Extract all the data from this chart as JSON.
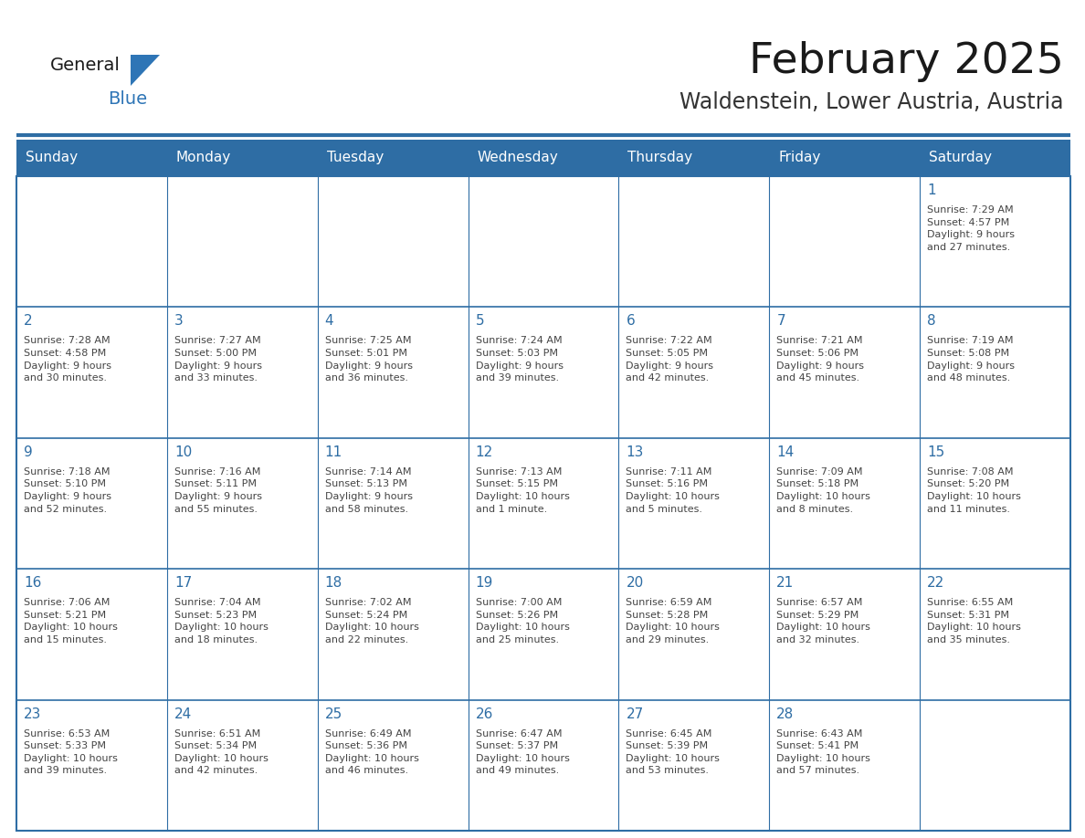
{
  "title": "February 2025",
  "subtitle": "Waldenstein, Lower Austria, Austria",
  "header_bg": "#2E6DA4",
  "header_text": "#FFFFFF",
  "cell_bg": "#FFFFFF",
  "border_color": "#2E6DA4",
  "row_border_color": "#4472A8",
  "day_headers": [
    "Sunday",
    "Monday",
    "Tuesday",
    "Wednesday",
    "Thursday",
    "Friday",
    "Saturday"
  ],
  "title_color": "#1a1a1a",
  "subtitle_color": "#333333",
  "text_color": "#444444",
  "day_number_color": "#2E6DA4",
  "weeks": [
    [
      {
        "day": null,
        "info": null
      },
      {
        "day": null,
        "info": null
      },
      {
        "day": null,
        "info": null
      },
      {
        "day": null,
        "info": null
      },
      {
        "day": null,
        "info": null
      },
      {
        "day": null,
        "info": null
      },
      {
        "day": 1,
        "info": "Sunrise: 7:29 AM\nSunset: 4:57 PM\nDaylight: 9 hours\nand 27 minutes."
      }
    ],
    [
      {
        "day": 2,
        "info": "Sunrise: 7:28 AM\nSunset: 4:58 PM\nDaylight: 9 hours\nand 30 minutes."
      },
      {
        "day": 3,
        "info": "Sunrise: 7:27 AM\nSunset: 5:00 PM\nDaylight: 9 hours\nand 33 minutes."
      },
      {
        "day": 4,
        "info": "Sunrise: 7:25 AM\nSunset: 5:01 PM\nDaylight: 9 hours\nand 36 minutes."
      },
      {
        "day": 5,
        "info": "Sunrise: 7:24 AM\nSunset: 5:03 PM\nDaylight: 9 hours\nand 39 minutes."
      },
      {
        "day": 6,
        "info": "Sunrise: 7:22 AM\nSunset: 5:05 PM\nDaylight: 9 hours\nand 42 minutes."
      },
      {
        "day": 7,
        "info": "Sunrise: 7:21 AM\nSunset: 5:06 PM\nDaylight: 9 hours\nand 45 minutes."
      },
      {
        "day": 8,
        "info": "Sunrise: 7:19 AM\nSunset: 5:08 PM\nDaylight: 9 hours\nand 48 minutes."
      }
    ],
    [
      {
        "day": 9,
        "info": "Sunrise: 7:18 AM\nSunset: 5:10 PM\nDaylight: 9 hours\nand 52 minutes."
      },
      {
        "day": 10,
        "info": "Sunrise: 7:16 AM\nSunset: 5:11 PM\nDaylight: 9 hours\nand 55 minutes."
      },
      {
        "day": 11,
        "info": "Sunrise: 7:14 AM\nSunset: 5:13 PM\nDaylight: 9 hours\nand 58 minutes."
      },
      {
        "day": 12,
        "info": "Sunrise: 7:13 AM\nSunset: 5:15 PM\nDaylight: 10 hours\nand 1 minute."
      },
      {
        "day": 13,
        "info": "Sunrise: 7:11 AM\nSunset: 5:16 PM\nDaylight: 10 hours\nand 5 minutes."
      },
      {
        "day": 14,
        "info": "Sunrise: 7:09 AM\nSunset: 5:18 PM\nDaylight: 10 hours\nand 8 minutes."
      },
      {
        "day": 15,
        "info": "Sunrise: 7:08 AM\nSunset: 5:20 PM\nDaylight: 10 hours\nand 11 minutes."
      }
    ],
    [
      {
        "day": 16,
        "info": "Sunrise: 7:06 AM\nSunset: 5:21 PM\nDaylight: 10 hours\nand 15 minutes."
      },
      {
        "day": 17,
        "info": "Sunrise: 7:04 AM\nSunset: 5:23 PM\nDaylight: 10 hours\nand 18 minutes."
      },
      {
        "day": 18,
        "info": "Sunrise: 7:02 AM\nSunset: 5:24 PM\nDaylight: 10 hours\nand 22 minutes."
      },
      {
        "day": 19,
        "info": "Sunrise: 7:00 AM\nSunset: 5:26 PM\nDaylight: 10 hours\nand 25 minutes."
      },
      {
        "day": 20,
        "info": "Sunrise: 6:59 AM\nSunset: 5:28 PM\nDaylight: 10 hours\nand 29 minutes."
      },
      {
        "day": 21,
        "info": "Sunrise: 6:57 AM\nSunset: 5:29 PM\nDaylight: 10 hours\nand 32 minutes."
      },
      {
        "day": 22,
        "info": "Sunrise: 6:55 AM\nSunset: 5:31 PM\nDaylight: 10 hours\nand 35 minutes."
      }
    ],
    [
      {
        "day": 23,
        "info": "Sunrise: 6:53 AM\nSunset: 5:33 PM\nDaylight: 10 hours\nand 39 minutes."
      },
      {
        "day": 24,
        "info": "Sunrise: 6:51 AM\nSunset: 5:34 PM\nDaylight: 10 hours\nand 42 minutes."
      },
      {
        "day": 25,
        "info": "Sunrise: 6:49 AM\nSunset: 5:36 PM\nDaylight: 10 hours\nand 46 minutes."
      },
      {
        "day": 26,
        "info": "Sunrise: 6:47 AM\nSunset: 5:37 PM\nDaylight: 10 hours\nand 49 minutes."
      },
      {
        "day": 27,
        "info": "Sunrise: 6:45 AM\nSunset: 5:39 PM\nDaylight: 10 hours\nand 53 minutes."
      },
      {
        "day": 28,
        "info": "Sunrise: 6:43 AM\nSunset: 5:41 PM\nDaylight: 10 hours\nand 57 minutes."
      },
      {
        "day": null,
        "info": null
      }
    ]
  ],
  "logo_color_general": "#1a1a1a",
  "logo_color_blue": "#2E75B6",
  "logo_triangle_color": "#2E75B6",
  "fig_width": 11.88,
  "fig_height": 9.18,
  "dpi": 100
}
